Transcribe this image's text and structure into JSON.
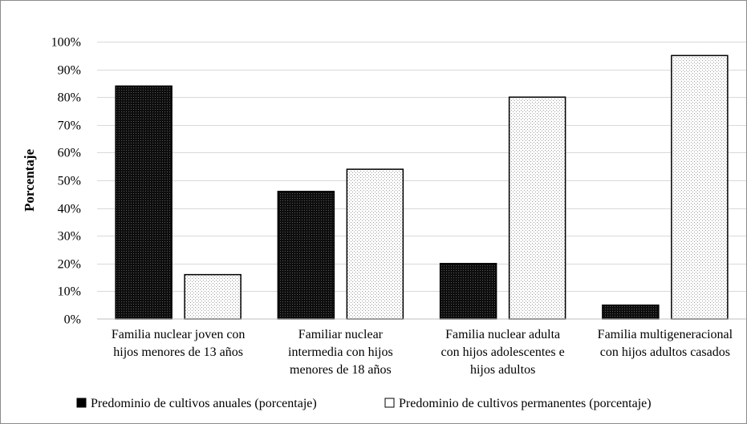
{
  "chart_data": {
    "type": "bar",
    "title": "",
    "xlabel": "",
    "ylabel": "Porcentaje",
    "ylim": [
      0,
      100
    ],
    "yticks": [
      "0%",
      "10%",
      "20%",
      "30%",
      "40%",
      "50%",
      "60%",
      "70%",
      "80%",
      "90%",
      "100%"
    ],
    "grid": true,
    "legend_position": "bottom",
    "categories": [
      [
        "Familia nuclear joven con",
        "hijos menores de 13 años"
      ],
      [
        "Familiar nuclear",
        "intermedia con hijos",
        "menores de 18 años"
      ],
      [
        "Familia nuclear adulta",
        "con hijos adolescentes e",
        "hijos adultos"
      ],
      [
        "Familia multigeneracional",
        "con hijos adultos casados"
      ]
    ],
    "series": [
      {
        "name": "Predominio de cultivos anuales (porcentaje)",
        "values": [
          84,
          46,
          20,
          5
        ],
        "pattern": "dark",
        "color": "#1a1a1a"
      },
      {
        "name": "Predominio de cultivos permanentes (porcentaje)",
        "values": [
          16,
          54,
          80,
          95
        ],
        "pattern": "light",
        "color": "#f2f2f2"
      }
    ]
  }
}
